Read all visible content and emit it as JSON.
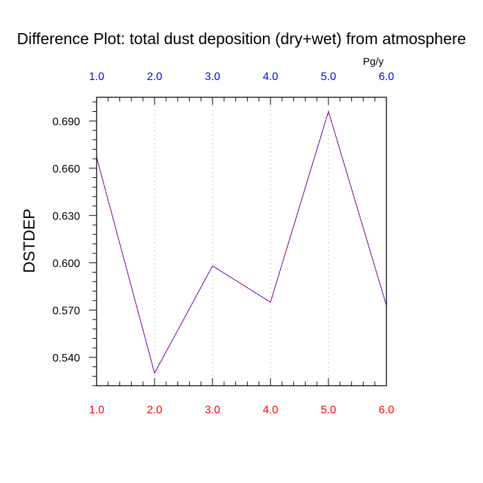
{
  "chart_data": {
    "type": "line",
    "title": "Difference Plot: total dust deposition (dry+wet) from atmosphere",
    "ylabel": "DSTDEP",
    "units": "Pg/y",
    "x": [
      1.0,
      2.0,
      3.0,
      4.0,
      5.0,
      6.0
    ],
    "x_tick_labels": [
      "1.0",
      "2.0",
      "3.0",
      "4.0",
      "5.0",
      "6.0"
    ],
    "xlim": [
      1.0,
      6.0
    ],
    "ylim": [
      0.522,
      0.705
    ],
    "y_ticks": [
      0.54,
      0.57,
      0.6,
      0.63,
      0.66,
      0.69
    ],
    "y_tick_labels": [
      "0.540",
      "0.570",
      "0.600",
      "0.630",
      "0.660",
      "0.690"
    ],
    "x_grid": true,
    "y_grid": false,
    "series": [
      {
        "values": [
          0.667,
          0.53,
          0.598,
          0.575,
          0.696,
          0.573
        ],
        "color": "#ff0000",
        "dash": "dashed"
      },
      {
        "values": [
          0.667,
          0.53,
          0.598,
          0.575,
          0.696,
          0.573
        ],
        "color": "#0000ff",
        "dash": "dashed"
      }
    ],
    "colors": {
      "bottom_ticks": "#ff0000",
      "top_ticks": "#0000ff",
      "left_ticks": "#000000",
      "grid": "#c0c0c0",
      "axis": "#000000"
    }
  }
}
